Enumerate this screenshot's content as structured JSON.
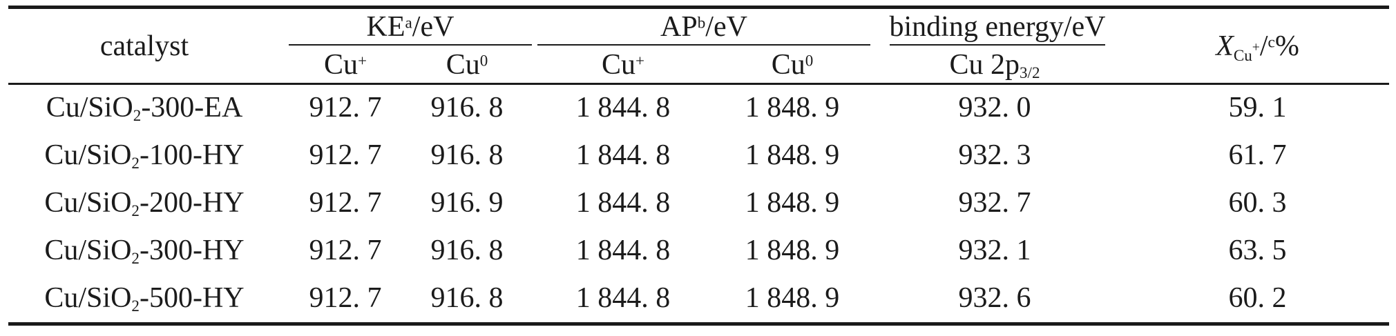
{
  "colors": {
    "background": "#ffffff",
    "text": "#1b1b1b",
    "rule": "#1a1a1a"
  },
  "table": {
    "header": {
      "catalyst": "catalyst",
      "ke": {
        "base": "KE",
        "sup": "a",
        "unit": "/eV"
      },
      "ap": {
        "base": "AP",
        "sup": "b",
        "unit": "/eV"
      },
      "binding_energy": "binding energy/eV",
      "sub_headers": {
        "ke_cu_plus": {
          "base": "Cu",
          "sup": "+"
        },
        "ke_cu_zero": {
          "base": "Cu",
          "sup": "0"
        },
        "ap_cu_plus": {
          "base": "Cu",
          "sup": "+"
        },
        "ap_cu_zero": {
          "base": "Cu",
          "sup": "0"
        },
        "cu_2p": {
          "base": "Cu 2p",
          "sub": "3/2"
        }
      },
      "x": {
        "base": "X",
        "sub": "Cu",
        "subsup": "+",
        "slash": "/",
        "sup": "c",
        "unit": "%"
      }
    },
    "rows": [
      {
        "catalyst": {
          "pre": "Cu/SiO",
          "sub": "2",
          "post": "-300-EA"
        },
        "ke_cu_plus": "912. 7",
        "ke_cu_zero": "916. 8",
        "ap_cu_plus": "1 844. 8",
        "ap_cu_zero": "1 848. 9",
        "binding_energy": "932. 0",
        "x_cu": "59. 1"
      },
      {
        "catalyst": {
          "pre": "Cu/SiO",
          "sub": "2",
          "post": "-100-HY"
        },
        "ke_cu_plus": "912. 7",
        "ke_cu_zero": "916. 8",
        "ap_cu_plus": "1 844. 8",
        "ap_cu_zero": "1 848. 9",
        "binding_energy": "932. 3",
        "x_cu": "61. 7"
      },
      {
        "catalyst": {
          "pre": "Cu/SiO",
          "sub": "2",
          "post": "-200-HY"
        },
        "ke_cu_plus": "912. 7",
        "ke_cu_zero": "916. 9",
        "ap_cu_plus": "1 844. 8",
        "ap_cu_zero": "1 848. 9",
        "binding_energy": "932. 7",
        "x_cu": "60. 3"
      },
      {
        "catalyst": {
          "pre": "Cu/SiO",
          "sub": "2",
          "post": "-300-HY"
        },
        "ke_cu_plus": "912. 7",
        "ke_cu_zero": "916. 8",
        "ap_cu_plus": "1 844. 8",
        "ap_cu_zero": "1 848. 9",
        "binding_energy": "932. 1",
        "x_cu": "63. 5"
      },
      {
        "catalyst": {
          "pre": "Cu/SiO",
          "sub": "2",
          "post": "-500-HY"
        },
        "ke_cu_plus": "912. 7",
        "ke_cu_zero": "916. 8",
        "ap_cu_plus": "1 844. 8",
        "ap_cu_zero": "1 848. 9",
        "binding_energy": "932. 6",
        "x_cu": "60. 2"
      }
    ]
  }
}
